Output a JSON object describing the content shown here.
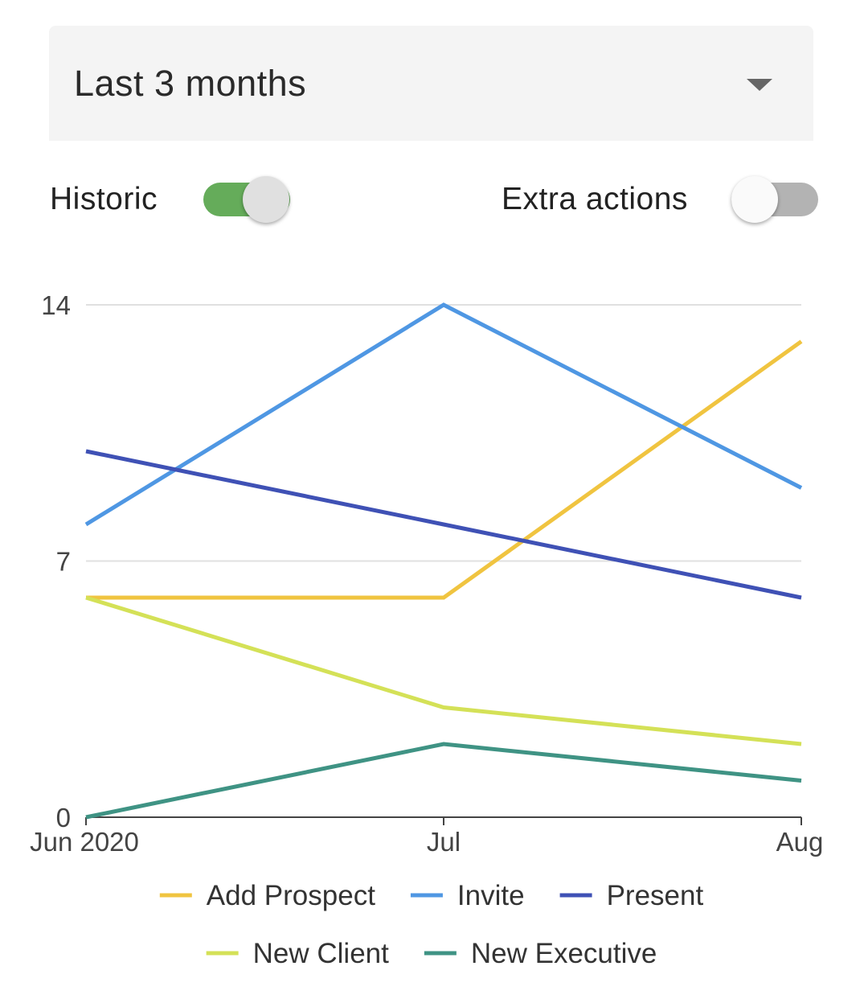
{
  "range_select": {
    "value": "Last 3 months"
  },
  "toggles": {
    "historic": {
      "label": "Historic",
      "on": true
    },
    "extra_actions": {
      "label": "Extra actions",
      "on": false
    }
  },
  "colors": {
    "toggle_on_track": "#65ac5a",
    "toggle_on_thumb": "#e0e0e0",
    "toggle_off_track": "#b3b3b3",
    "toggle_off_thumb": "#fafafa"
  },
  "chart_data": {
    "type": "line",
    "x": [
      "Jun 2020",
      "Jul",
      "Aug"
    ],
    "ylim": [
      0,
      14
    ],
    "yticks": [
      "0",
      "7",
      "14"
    ],
    "grid": true,
    "legend_position": "bottom",
    "series": [
      {
        "name": "Add Prospect",
        "color": "#f0c440",
        "values": [
          6,
          6,
          13
        ]
      },
      {
        "name": "Invite",
        "color": "#4f97e3",
        "values": [
          8,
          14,
          9
        ]
      },
      {
        "name": "Present",
        "color": "#3f51b5",
        "values": [
          10,
          8,
          6
        ]
      },
      {
        "name": "New Client",
        "color": "#d4e157",
        "values": [
          6,
          3,
          2
        ]
      },
      {
        "name": "New Executive",
        "color": "#3f9384",
        "values": [
          0,
          2,
          1
        ]
      }
    ]
  }
}
